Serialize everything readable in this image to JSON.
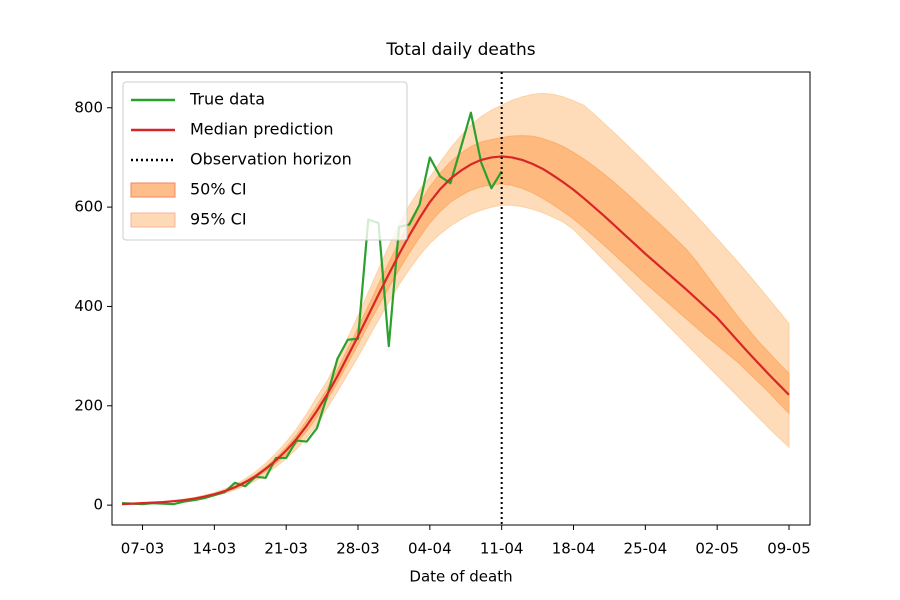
{
  "chart_data": {
    "type": "line",
    "title": "Total daily deaths",
    "xlabel": "Date of death",
    "x": [
      "05-03",
      "06-03",
      "07-03",
      "08-03",
      "09-03",
      "10-03",
      "11-03",
      "12-03",
      "13-03",
      "14-03",
      "15-03",
      "16-03",
      "17-03",
      "18-03",
      "19-03",
      "20-03",
      "21-03",
      "22-03",
      "23-03",
      "24-03",
      "25-03",
      "26-03",
      "27-03",
      "28-03",
      "29-03",
      "30-03",
      "31-03",
      "01-04",
      "02-04",
      "03-04",
      "04-04",
      "05-04",
      "06-04",
      "07-04",
      "08-04",
      "09-04",
      "10-04",
      "11-04",
      "12-04",
      "13-04",
      "14-04",
      "15-04",
      "16-04",
      "17-04",
      "18-04",
      "19-04",
      "20-04",
      "21-04",
      "22-04",
      "23-04",
      "24-04",
      "25-04",
      "26-04",
      "27-04",
      "28-04",
      "29-04",
      "30-04",
      "01-05",
      "02-05",
      "03-05",
      "04-05",
      "05-05",
      "06-05",
      "07-05",
      "08-05",
      "09-05"
    ],
    "xticks": [
      "07-03",
      "14-03",
      "21-03",
      "28-03",
      "04-04",
      "11-04",
      "18-04",
      "25-04",
      "02-05",
      "09-05"
    ],
    "ylim": [
      -40,
      872
    ],
    "yticks": [
      0,
      200,
      400,
      600,
      800
    ],
    "legend": "upper left",
    "series": [
      {
        "name": "True data",
        "kind": "line",
        "color": "#2ca02c",
        "values": [
          4,
          3,
          2,
          4,
          3,
          2,
          7,
          10,
          14,
          20,
          26,
          45,
          38,
          57,
          55,
          95,
          95,
          130,
          128,
          155,
          220,
          295,
          333,
          335,
          575,
          568,
          320,
          560,
          565,
          605,
          700,
          662,
          648,
          718,
          790,
          690,
          638,
          672,
          null,
          null,
          null,
          null,
          null,
          null,
          null,
          null,
          null,
          null,
          null,
          null,
          null,
          null,
          null,
          null,
          null,
          null,
          null,
          null,
          null,
          null,
          null,
          null,
          null,
          null,
          null,
          null
        ]
      },
      {
        "name": "Median prediction",
        "kind": "line",
        "color": "#d62728",
        "values": [
          2,
          3,
          4,
          5,
          6,
          8,
          10,
          13,
          17,
          22,
          28,
          36,
          46,
          58,
          73,
          90,
          110,
          133,
          160,
          190,
          223,
          260,
          300,
          340,
          382,
          424,
          465,
          505,
          543,
          578,
          610,
          636,
          657,
          673,
          686,
          695,
          700,
          702,
          700,
          695,
          687,
          677,
          664,
          650,
          635,
          618,
          600,
          582,
          563,
          544,
          525,
          506,
          488,
          470,
          452,
          434,
          415,
          396,
          377,
          354,
          331,
          308,
          286,
          264,
          243,
          222
        ]
      },
      {
        "name": "Observation horizon",
        "kind": "vline",
        "color": "#000000",
        "x": "11-04"
      },
      {
        "name": "50% CI",
        "kind": "band",
        "color": "#fdae6b",
        "edge": "#f4845f",
        "lower": [
          2,
          3,
          4,
          5,
          6,
          7,
          9,
          12,
          16,
          20,
          26,
          33,
          43,
          54,
          68,
          84,
          102,
          124,
          149,
          177,
          212,
          247,
          285,
          323,
          363,
          401,
          438,
          474,
          508,
          539,
          568,
          591,
          610,
          623,
          634,
          641,
          645,
          647,
          644,
          638,
          629,
          618,
          605,
          591,
          576,
          559,
          541,
          523,
          504,
          485,
          466,
          447,
          429,
          411,
          393,
          375,
          357,
          339,
          322,
          305,
          288,
          268,
          248,
          228,
          206,
          185
        ],
        "upper": [
          2,
          3,
          4,
          5,
          6,
          8,
          11,
          14,
          18,
          23,
          30,
          38,
          49,
          61,
          77,
          95,
          117,
          141,
          170,
          201,
          234,
          273,
          315,
          357,
          401,
          445,
          488,
          530,
          570,
          607,
          641,
          668,
          691,
          708,
          722,
          731,
          736,
          740,
          743,
          744,
          743,
          738,
          731,
          722,
          710,
          697,
          682,
          666,
          649,
          631,
          612,
          593,
          574,
          555,
          535,
          515,
          490,
          462,
          434,
          407,
          380,
          355,
          330,
          308,
          286,
          265
        ]
      },
      {
        "name": "95% CI",
        "kind": "band",
        "color": "#fdd0a2",
        "edge": "#f9b3a0",
        "lower": [
          2,
          3,
          3,
          4,
          5,
          7,
          8,
          11,
          14,
          19,
          24,
          31,
          39,
          49,
          62,
          77,
          94,
          113,
          136,
          162,
          196,
          229,
          264,
          299,
          336,
          373,
          409,
          444,
          475,
          503,
          527,
          546,
          562,
          575,
          586,
          594,
          600,
          604,
          604,
          601,
          596,
          589,
          580,
          570,
          555,
          534,
          513,
          492,
          471,
          450,
          429,
          408,
          387,
          366,
          345,
          324,
          303,
          282,
          261,
          240,
          219,
          198,
          177,
          156,
          136,
          117
        ],
        "upper": [
          2,
          3,
          5,
          6,
          7,
          9,
          12,
          15,
          20,
          25,
          32,
          41,
          53,
          67,
          84,
          104,
          127,
          153,
          184,
          218,
          250,
          291,
          336,
          381,
          428,
          475,
          521,
          566,
          603,
          635,
          660,
          690,
          718,
          743,
          765,
          782,
          795,
          805,
          815,
          822,
          827,
          829,
          827,
          822,
          814,
          805,
          787,
          768,
          749,
          729,
          709,
          689,
          668,
          647,
          626,
          604,
          582,
          559,
          536,
          513,
          490,
          466,
          441,
          416,
          391,
          365
        ]
      }
    ]
  }
}
